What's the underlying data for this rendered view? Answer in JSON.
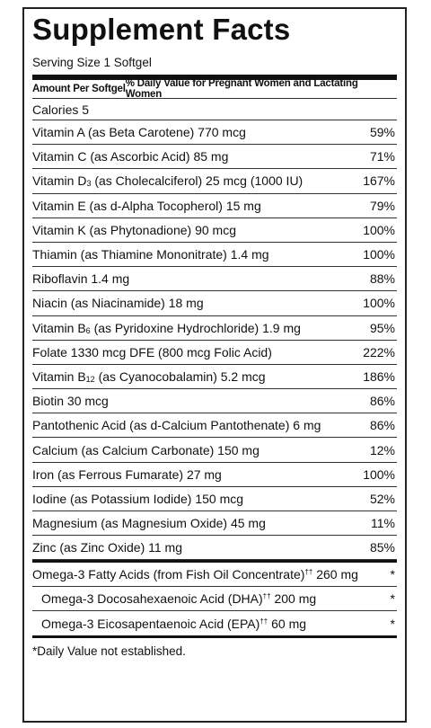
{
  "title": "Supplement Facts",
  "serving": "Serving Size 1 Softgel",
  "header": {
    "amount": "Amount Per Softgel",
    "dv": "% Daily Value for Pregnant Women and Lactating Women"
  },
  "calories": "Calories  5",
  "nutrients": [
    {
      "pre": "Vitamin A (as Beta Carotene)  770 mcg",
      "pct": "59%"
    },
    {
      "pre": "Vitamin C (as Ascorbic Acid)  85 mg",
      "pct": "71%"
    },
    {
      "pre": "Vitamin D",
      "sub": "3",
      "post": " (as Cholecalciferol)  25 mcg (1000 IU)",
      "pct": "167%"
    },
    {
      "pre": "Vitamin E (as d-Alpha Tocopherol)  15 mg",
      "pct": "79%"
    },
    {
      "pre": "Vitamin K (as Phytonadione)  90 mcg",
      "pct": "100%"
    },
    {
      "pre": "Thiamin (as Thiamine Mononitrate)  1.4 mg",
      "pct": "100%"
    },
    {
      "pre": "Riboflavin  1.4 mg",
      "pct": "88%"
    },
    {
      "pre": "Niacin (as Niacinamide)  18 mg",
      "pct": "100%"
    },
    {
      "pre": "Vitamin B",
      "sub": "6",
      "post": " (as Pyridoxine Hydrochloride)  1.9 mg",
      "pct": "95%"
    },
    {
      "pre": "Folate  1330 mcg DFE (800 mcg Folic Acid)",
      "pct": "222%"
    },
    {
      "pre": "Vitamin B",
      "sub": "12",
      "post": " (as Cyanocobalamin)  5.2 mcg",
      "pct": "186%"
    },
    {
      "pre": "Biotin  30 mcg",
      "pct": "86%"
    },
    {
      "pre": "Pantothenic Acid (as d-Calcium Pantothenate)  6 mg",
      "pct": "86%"
    },
    {
      "pre": "Calcium (as Calcium Carbonate)  150 mg",
      "pct": "12%"
    },
    {
      "pre": "Iron (as Ferrous Fumarate)  27 mg",
      "pct": "100%"
    },
    {
      "pre": "Iodine (as Potassium Iodide)  150 mcg",
      "pct": "52%"
    },
    {
      "pre": "Magnesium (as Magnesium Oxide)  45 mg",
      "pct": "11%"
    },
    {
      "pre": "Zinc (as Zinc Oxide)  11 mg",
      "pct": "85%"
    }
  ],
  "omega": [
    {
      "name": "Omega-3 Fatty Acids (from Fish Oil Concentrate)",
      "sup": "††",
      "amt": "  260 mg",
      "pct": "*"
    },
    {
      "name": "Omega-3 Docosahexaenoic Acid (DHA)",
      "sup": "††",
      "amt": "  200 mg",
      "pct": "*"
    },
    {
      "name": "Omega-3 Eicosapentaenoic Acid (EPA)",
      "sup": "††",
      "amt": "  60 mg",
      "pct": "*"
    }
  ],
  "footnote": "*Daily Value not established."
}
